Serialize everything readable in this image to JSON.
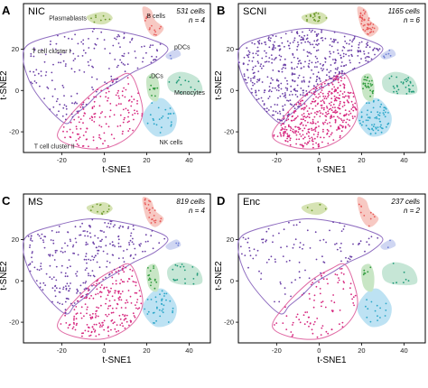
{
  "chart_data": [
    {
      "type": "scatter",
      "panel": "A",
      "title": "NIC",
      "info_cells": "531 cells",
      "info_n": "n = 4",
      "xlabel": "t-SNE1",
      "ylabel": "t-SNE2",
      "xticks": [
        -20,
        0,
        20,
        40
      ],
      "yticks": [
        -20,
        0,
        20
      ],
      "xlim": [
        -38,
        50
      ],
      "ylim": [
        -30,
        42
      ],
      "labels": [
        {
          "text": "Plasmablasts",
          "x": -26,
          "y": 34,
          "anchor": "start"
        },
        {
          "text": "B cells",
          "x": 20,
          "y": 35,
          "anchor": "start"
        },
        {
          "text": "pDCs",
          "x": 33,
          "y": 20,
          "anchor": "start"
        },
        {
          "text": "T cell cluster I",
          "x": -34,
          "y": 18,
          "anchor": "start"
        },
        {
          "text": "DCs",
          "x": 22,
          "y": 6,
          "anchor": "start"
        },
        {
          "text": "Monocytes",
          "x": 33,
          "y": -2,
          "anchor": "start"
        },
        {
          "text": "NK cells",
          "x": 26,
          "y": -26,
          "anchor": "start"
        },
        {
          "text": "T cell cluster II",
          "x": -33,
          "y": -28,
          "anchor": "start"
        }
      ]
    },
    {
      "type": "scatter",
      "panel": "B",
      "title": "SCNI",
      "info_cells": "1165 cells",
      "info_n": "n = 6",
      "xlabel": "t-SNE1",
      "ylabel": "t-SNE2",
      "xticks": [
        -20,
        0,
        20,
        40
      ],
      "yticks": [
        -20,
        0,
        20
      ],
      "xlim": [
        -38,
        50
      ],
      "ylim": [
        -30,
        42
      ],
      "labels": []
    },
    {
      "type": "scatter",
      "panel": "C",
      "title": "MS",
      "info_cells": "819 cells",
      "info_n": "n = 4",
      "xlabel": "t-SNE1",
      "ylabel": "t-SNE2",
      "xticks": [
        -20,
        0,
        20,
        40
      ],
      "yticks": [
        -20,
        0,
        20
      ],
      "xlim": [
        -38,
        50
      ],
      "ylim": [
        -30,
        42
      ],
      "labels": []
    },
    {
      "type": "scatter",
      "panel": "D",
      "title": "Enc",
      "info_cells": "237 cells",
      "info_n": "n = 2",
      "xlabel": "t-SNE1",
      "ylabel": "t-SNE2",
      "xticks": [
        -20,
        0,
        20,
        40
      ],
      "yticks": [
        -20,
        0,
        20
      ],
      "xlim": [
        -38,
        50
      ],
      "ylim": [
        -30,
        42
      ],
      "labels": []
    }
  ],
  "cluster_colors": {
    "tcell1": "#6a3fa6",
    "tcell2": "#d6267e",
    "nk": "#2aa6c8",
    "bcells": "#e85a5a",
    "plasmablasts": "#6d9a2c",
    "dcs": "#2e9a3c",
    "monocytes": "#1f9a78",
    "pdcs": "#6f7fd6"
  },
  "cluster_fills": {
    "nk": "#bde2f3",
    "bcells": "#f7c9c3",
    "plasmablasts": "#d6e3b4",
    "dcs": "#c8e6c5",
    "monocytes": "#c6e6d6",
    "pdcs": "#cfd6f2"
  },
  "outline_colors": {
    "tcell1": "#8f6dc0",
    "tcell2": "#e06aa4"
  },
  "cluster_shapes": {
    "tcell1": [
      [
        -36,
        22
      ],
      [
        -22,
        27
      ],
      [
        -6,
        30
      ],
      [
        10,
        28
      ],
      [
        24,
        24
      ],
      [
        30,
        20
      ],
      [
        24,
        14
      ],
      [
        14,
        9
      ],
      [
        6,
        4
      ],
      [
        -2,
        -1
      ],
      [
        -8,
        -7
      ],
      [
        -14,
        -12
      ],
      [
        -18,
        -16
      ],
      [
        -26,
        -9
      ],
      [
        -34,
        2
      ],
      [
        -38,
        14
      ]
    ],
    "tcell2": [
      [
        -16,
        -12
      ],
      [
        -4,
        0
      ],
      [
        6,
        6
      ],
      [
        12,
        8
      ],
      [
        16,
        0
      ],
      [
        18,
        -12
      ],
      [
        12,
        -22
      ],
      [
        0,
        -28
      ],
      [
        -14,
        -27
      ],
      [
        -22,
        -22
      ]
    ],
    "nk": [
      [
        18,
        -14
      ],
      [
        22,
        -6
      ],
      [
        28,
        -4
      ],
      [
        34,
        -12
      ],
      [
        32,
        -20
      ],
      [
        24,
        -22
      ]
    ],
    "bcells": [
      [
        18,
        40
      ],
      [
        22,
        39
      ],
      [
        24,
        34
      ],
      [
        28,
        30
      ],
      [
        24,
        26
      ],
      [
        20,
        30
      ]
    ],
    "plasmablasts": [
      [
        -8,
        36
      ],
      [
        0,
        38
      ],
      [
        4,
        35
      ],
      [
        0,
        32
      ],
      [
        -6,
        33
      ]
    ],
    "dcs": [
      [
        20,
        6
      ],
      [
        24,
        8
      ],
      [
        26,
        2
      ],
      [
        25,
        -5
      ],
      [
        21,
        -3
      ]
    ],
    "monocytes": [
      [
        30,
        6
      ],
      [
        36,
        9
      ],
      [
        44,
        6
      ],
      [
        46,
        -1
      ],
      [
        38,
        -2
      ],
      [
        31,
        0
      ]
    ],
    "pdcs": [
      [
        29,
        17
      ],
      [
        34,
        20
      ],
      [
        36,
        17
      ],
      [
        31,
        15
      ]
    ]
  },
  "cluster_proportions": {
    "tcell1": 0.45,
    "tcell2": 0.37,
    "nk": 0.06,
    "bcells": 0.04,
    "plasmablasts": 0.02,
    "dcs": 0.025,
    "monocytes": 0.03,
    "pdcs": 0.005
  },
  "panel_point_scale": [
    0.35,
    1.0,
    0.55,
    0.22
  ]
}
